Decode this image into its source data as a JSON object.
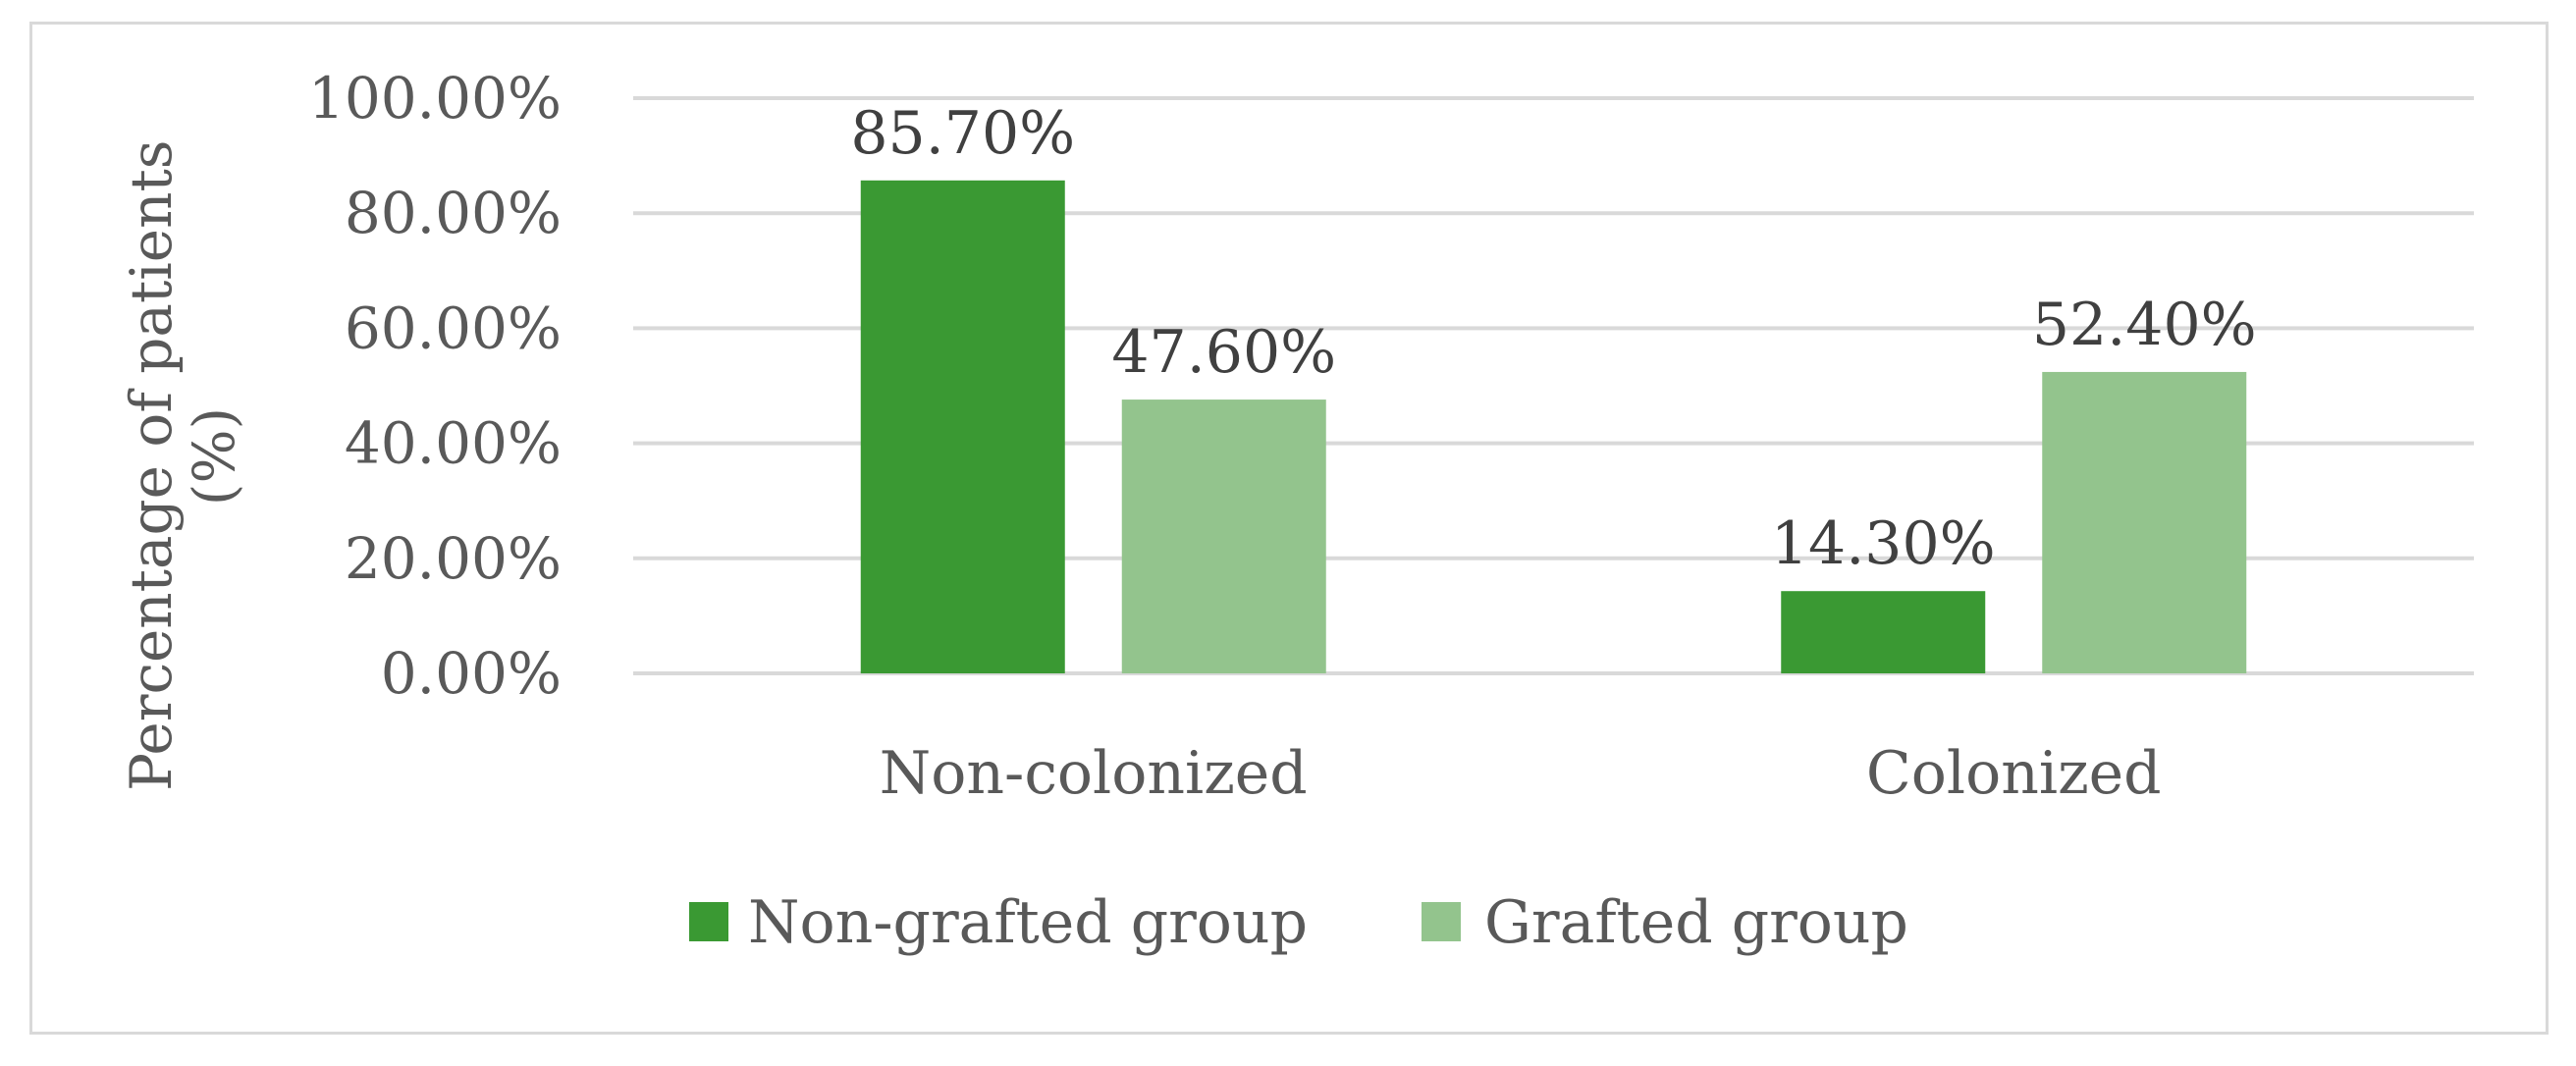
{
  "chart_data": {
    "type": "bar",
    "title": "",
    "xlabel": "",
    "ylabel": "Percentage of patients (%)",
    "ylabel_lines": [
      "Percentage of patients",
      "(%)"
    ],
    "categories": [
      "Non-colonized",
      "Colonized"
    ],
    "series": [
      {
        "name": "Non-grafted group",
        "color": "#3a9933",
        "values": [
          85.7,
          14.3
        ],
        "labels": [
          "85.70%",
          "14.30%"
        ]
      },
      {
        "name": "Grafted group",
        "color": "#93c48d",
        "values": [
          47.6,
          52.4
        ],
        "labels": [
          "47.60%",
          "52.40%"
        ]
      }
    ],
    "ylim": [
      0,
      100
    ],
    "yticks": [
      0,
      20,
      40,
      60,
      80,
      100
    ],
    "ytick_labels": [
      "0.00%",
      "20.00%",
      "40.00%",
      "60.00%",
      "80.00%",
      "100.00%"
    ],
    "grid": true,
    "legend_position": "bottom"
  }
}
